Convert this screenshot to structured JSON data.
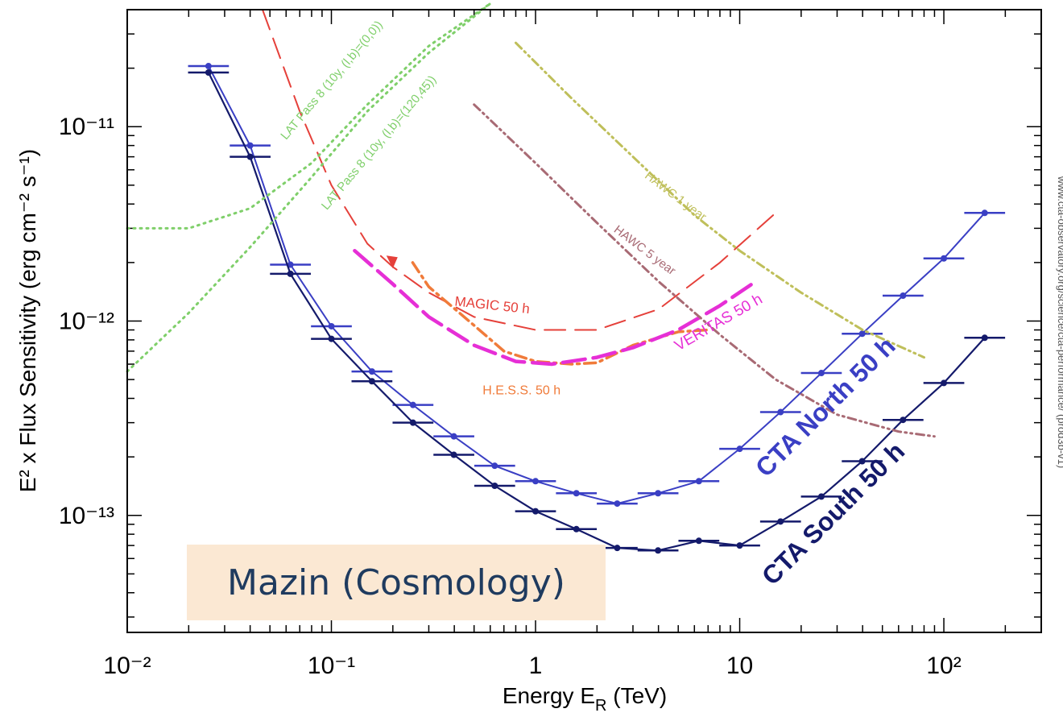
{
  "overlay": {
    "label": "Mazin (Cosmology)"
  },
  "side_credit": "www.cta-observatory.org/science/cta-performance/ (prod3b-v1)",
  "chart_data": {
    "type": "line",
    "title": "",
    "xlabel": {
      "base": "Energy E",
      "sub": "R",
      "unit": " (TeV)"
    },
    "ylabel": {
      "text": "E² x Flux Sensitivity (erg cm⁻² s⁻¹)"
    },
    "xscale": "log",
    "yscale": "log",
    "xlim": [
      0.01,
      300
    ],
    "ylim": [
      2.5e-14,
      4e-11
    ],
    "grid": false,
    "x_ticks": [
      {
        "value": 0.01,
        "label": "10⁻²"
      },
      {
        "value": 0.1,
        "label": "10⁻¹"
      },
      {
        "value": 1,
        "label": "1"
      },
      {
        "value": 10,
        "label": "10"
      },
      {
        "value": 100,
        "label": "10²"
      }
    ],
    "y_ticks": [
      {
        "value": 1e-13,
        "label": "10⁻¹³"
      },
      {
        "value": 1e-12,
        "label": "10⁻¹²"
      },
      {
        "value": 1e-11,
        "label": "10⁻¹¹"
      }
    ],
    "series": [
      {
        "name": "CTA North 50 h",
        "color": "#3a3fc4",
        "style": "solid",
        "errorbars": true,
        "x": [
          0.025,
          0.04,
          0.063,
          0.1,
          0.158,
          0.251,
          0.398,
          0.631,
          1.0,
          1.585,
          2.512,
          3.981,
          6.31,
          10.0,
          15.85,
          25.12,
          39.81,
          63.1,
          100.0,
          158.5
        ],
        "y": [
          2.05e-11,
          8e-12,
          1.95e-12,
          9.4e-13,
          5.5e-13,
          3.7e-13,
          2.55e-13,
          1.8e-13,
          1.5e-13,
          1.3e-13,
          1.15e-13,
          1.3e-13,
          1.5e-13,
          2.2e-13,
          3.4e-13,
          5.4e-13,
          8.6e-13,
          1.35e-12,
          2.1e-12,
          3.6e-12
        ]
      },
      {
        "name": "CTA South 50 h",
        "color": "#141a6b",
        "style": "solid",
        "errorbars": true,
        "x": [
          0.025,
          0.04,
          0.063,
          0.1,
          0.158,
          0.251,
          0.398,
          0.631,
          1.0,
          1.585,
          2.512,
          3.981,
          6.31,
          10.0,
          15.85,
          25.12,
          39.81,
          63.1,
          100.0,
          158.5
        ],
        "y": [
          1.9e-11,
          7e-12,
          1.75e-12,
          8.1e-13,
          4.9e-13,
          3e-13,
          2.05e-13,
          1.42e-13,
          1.05e-13,
          8.5e-14,
          6.8e-14,
          6.6e-14,
          7.4e-14,
          7e-14,
          9.3e-14,
          1.25e-13,
          1.9e-13,
          3.1e-13,
          4.8e-13,
          8.2e-13
        ]
      },
      {
        "name": "MAGIC 50 h",
        "color": "#e5403a",
        "style": "longdash",
        "x": [
          0.046,
          0.07,
          0.1,
          0.15,
          0.2,
          0.3,
          0.5,
          1.0,
          2.0,
          4.0,
          8.0,
          15.0
        ],
        "y": [
          4e-11,
          1.2e-11,
          5e-12,
          2.5e-12,
          1.9e-12,
          1.4e-12,
          1.05e-12,
          9e-13,
          9e-13,
          1.15e-12,
          2e-12,
          3.6e-12
        ]
      },
      {
        "name": "H.E.S.S. 50 h",
        "color": "#f07b3a",
        "style": "dashdot",
        "x": [
          0.25,
          0.3,
          0.5,
          0.7,
          1.0,
          1.5,
          2.0,
          3.0,
          5.0,
          7.0
        ],
        "y": [
          2e-12,
          1.5e-12,
          9.5e-13,
          7e-13,
          6.2e-13,
          6e-13,
          6.1e-13,
          7.5e-13,
          8.8e-13,
          9e-13
        ]
      },
      {
        "name": "VERITAS 50 h",
        "color": "#e62fd6",
        "style": "dash",
        "x": [
          0.13,
          0.2,
          0.3,
          0.5,
          0.8,
          1.2,
          2.0,
          3.0,
          5.0,
          8.0,
          12.0
        ],
        "y": [
          2.3e-12,
          1.55e-12,
          1.05e-12,
          7.5e-13,
          6.2e-13,
          6e-13,
          6.5e-13,
          7.3e-13,
          9e-13,
          1.2e-12,
          1.6e-12
        ]
      },
      {
        "name": "HAWC 1 year",
        "color": "#bfbf5a",
        "style": "dotdash",
        "x": [
          0.8,
          1.5,
          3.0,
          6.0,
          10.0,
          20.0,
          40.0,
          80.0
        ],
        "y": [
          2.7e-11,
          1.4e-11,
          7e-12,
          3.5e-12,
          2.3e-12,
          1.4e-12,
          9e-13,
          6.5e-13
        ]
      },
      {
        "name": "HAWC 5 year",
        "color": "#a86a74",
        "style": "dotdash",
        "x": [
          0.5,
          1.0,
          2.0,
          4.0,
          8.0,
          15.0,
          30.0,
          60.0,
          90.0
        ],
        "y": [
          1.3e-11,
          6.5e-12,
          3.2e-12,
          1.6e-12,
          8.5e-13,
          5e-13,
          3.3e-13,
          2.7e-13,
          2.55e-13
        ]
      },
      {
        "name": "LAT Pass 8 (10y, (l,b)=(0,0))",
        "color": "#7fcf6a",
        "style": "dotted",
        "x": [
          0.01,
          0.02,
          0.04,
          0.08,
          0.15,
          0.3,
          0.6
        ],
        "y": [
          3e-12,
          3e-12,
          3.8e-12,
          6.5e-12,
          1.3e-11,
          2.6e-11,
          4.3e-11
        ]
      },
      {
        "name": "LAT Pass 8 (10y, (l,b)=(120,45))",
        "color": "#7fcf6a",
        "style": "dotted",
        "x": [
          0.01,
          0.02,
          0.04,
          0.08,
          0.15,
          0.3,
          0.6
        ],
        "y": [
          5.5e-13,
          1.1e-12,
          2.4e-12,
          5.5e-12,
          1.2e-11,
          2.4e-11,
          4.3e-11
        ]
      }
    ],
    "annotations": [
      {
        "text": "MAGIC 50 h",
        "color": "#e5403a",
        "x": 0.4,
        "y": 1.2e-12,
        "angle": 6,
        "size": 17,
        "bold": false
      },
      {
        "text": "H.E.S.S. 50 h",
        "color": "#f07b3a",
        "x": 0.55,
        "y": 4.2e-13,
        "angle": 0,
        "size": 16,
        "bold": false
      },
      {
        "text": "VERITAS 50 h",
        "color": "#e62fd6",
        "x": 5.0,
        "y": 7e-13,
        "angle": -30,
        "size": 19,
        "bold": false
      },
      {
        "text": "HAWC 1 year",
        "color": "#bfbf5a",
        "x": 3.4,
        "y": 5.5e-12,
        "angle": 37,
        "size": 15,
        "bold": false
      },
      {
        "text": "HAWC 5 year",
        "color": "#a86a74",
        "x": 2.4,
        "y": 2.9e-12,
        "angle": 37,
        "size": 15,
        "bold": false
      },
      {
        "text": "LAT Pass 8 (10y, (l,b)=(0,0))",
        "color": "#7fcf6a",
        "x": 0.06,
        "y": 8.5e-12,
        "angle": -50,
        "size": 15,
        "bold": false
      },
      {
        "text": "LAT Pass 8 (10y, (l,b)=(120,45))",
        "color": "#7fcf6a",
        "x": 0.095,
        "y": 3.7e-12,
        "angle": -50,
        "size": 15,
        "bold": false
      },
      {
        "text": "CTA North 50 h",
        "color": "#3a3fc4",
        "x": 13.5,
        "y": 1.55e-13,
        "angle": -45,
        "size": 32,
        "bold": true
      },
      {
        "text": "CTA South 50 h",
        "color": "#141a6b",
        "x": 14.5,
        "y": 4.3e-14,
        "angle": -45,
        "size": 32,
        "bold": true
      }
    ]
  }
}
